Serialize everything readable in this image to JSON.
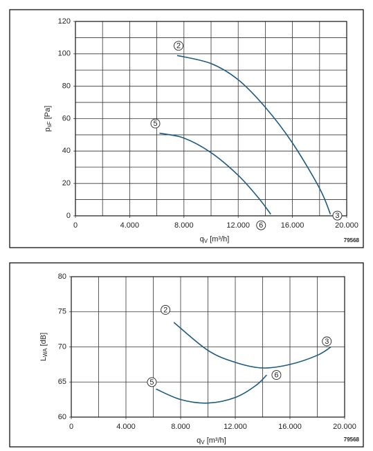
{
  "chart_data": [
    {
      "type": "line",
      "xlabel": [
        "q",
        "V",
        " [m³/h]"
      ],
      "ylabel": [
        "p",
        "sF",
        " [Pa]"
      ],
      "code": "79568",
      "xlim": [
        0,
        20000
      ],
      "ylim": [
        0,
        120
      ],
      "xticks": [
        0,
        {
          "value": 4000,
          "label": "4.000"
        },
        {
          "value": 8000,
          "label": "8.000"
        },
        {
          "value": 12000,
          "label": "12.000"
        },
        {
          "value": 16000,
          "label": "16.000"
        },
        {
          "value": 20000,
          "label": "20.000"
        }
      ],
      "yticks": [
        0,
        20,
        40,
        60,
        80,
        100,
        120
      ],
      "xgrid_step": 2000,
      "ygrid_step": 10,
      "grid": true,
      "series": [
        {
          "start_label": "2",
          "end_label": "3",
          "color": "#1d5a82",
          "x": [
            7500,
            10000,
            12000,
            14000,
            16000,
            18000,
            18800
          ],
          "values": [
            99,
            94,
            84,
            67,
            45,
            17,
            1
          ]
        },
        {
          "start_label": "5",
          "end_label": "6",
          "color": "#1d5a82",
          "x": [
            6200,
            8000,
            10000,
            12000,
            13500,
            14400
          ],
          "values": [
            51,
            48,
            39,
            25,
            11,
            1
          ]
        }
      ]
    },
    {
      "type": "line",
      "xlabel": [
        "q",
        "V",
        " [m³/h]"
      ],
      "ylabel": [
        "L",
        "WA",
        " [dB]"
      ],
      "code": "79568",
      "xlim": [
        0,
        20000
      ],
      "ylim": [
        60,
        80
      ],
      "xticks": [
        0,
        {
          "value": 4000,
          "label": "4.000"
        },
        {
          "value": 8000,
          "label": "8.000"
        },
        {
          "value": 12000,
          "label": "12.000"
        },
        {
          "value": 16000,
          "label": "16.000"
        },
        {
          "value": 20000,
          "label": "20.000"
        }
      ],
      "yticks": [
        60,
        65,
        70,
        75,
        80
      ],
      "xgrid_step": 2000,
      "ygrid_step": 5,
      "grid": true,
      "series": [
        {
          "start_label": "2",
          "end_label": "3",
          "color": "#1d5a82",
          "x": [
            7500,
            10000,
            12000,
            14000,
            16000,
            18000,
            19000
          ],
          "values": [
            73.5,
            69.5,
            67.8,
            67,
            67.5,
            68.8,
            70
          ]
        },
        {
          "start_label": "5",
          "end_label": "6",
          "color": "#1d5a82",
          "x": [
            6200,
            8000,
            10000,
            12000,
            13500,
            14300
          ],
          "values": [
            64,
            62.5,
            62,
            62.8,
            64.5,
            66
          ]
        }
      ]
    }
  ]
}
